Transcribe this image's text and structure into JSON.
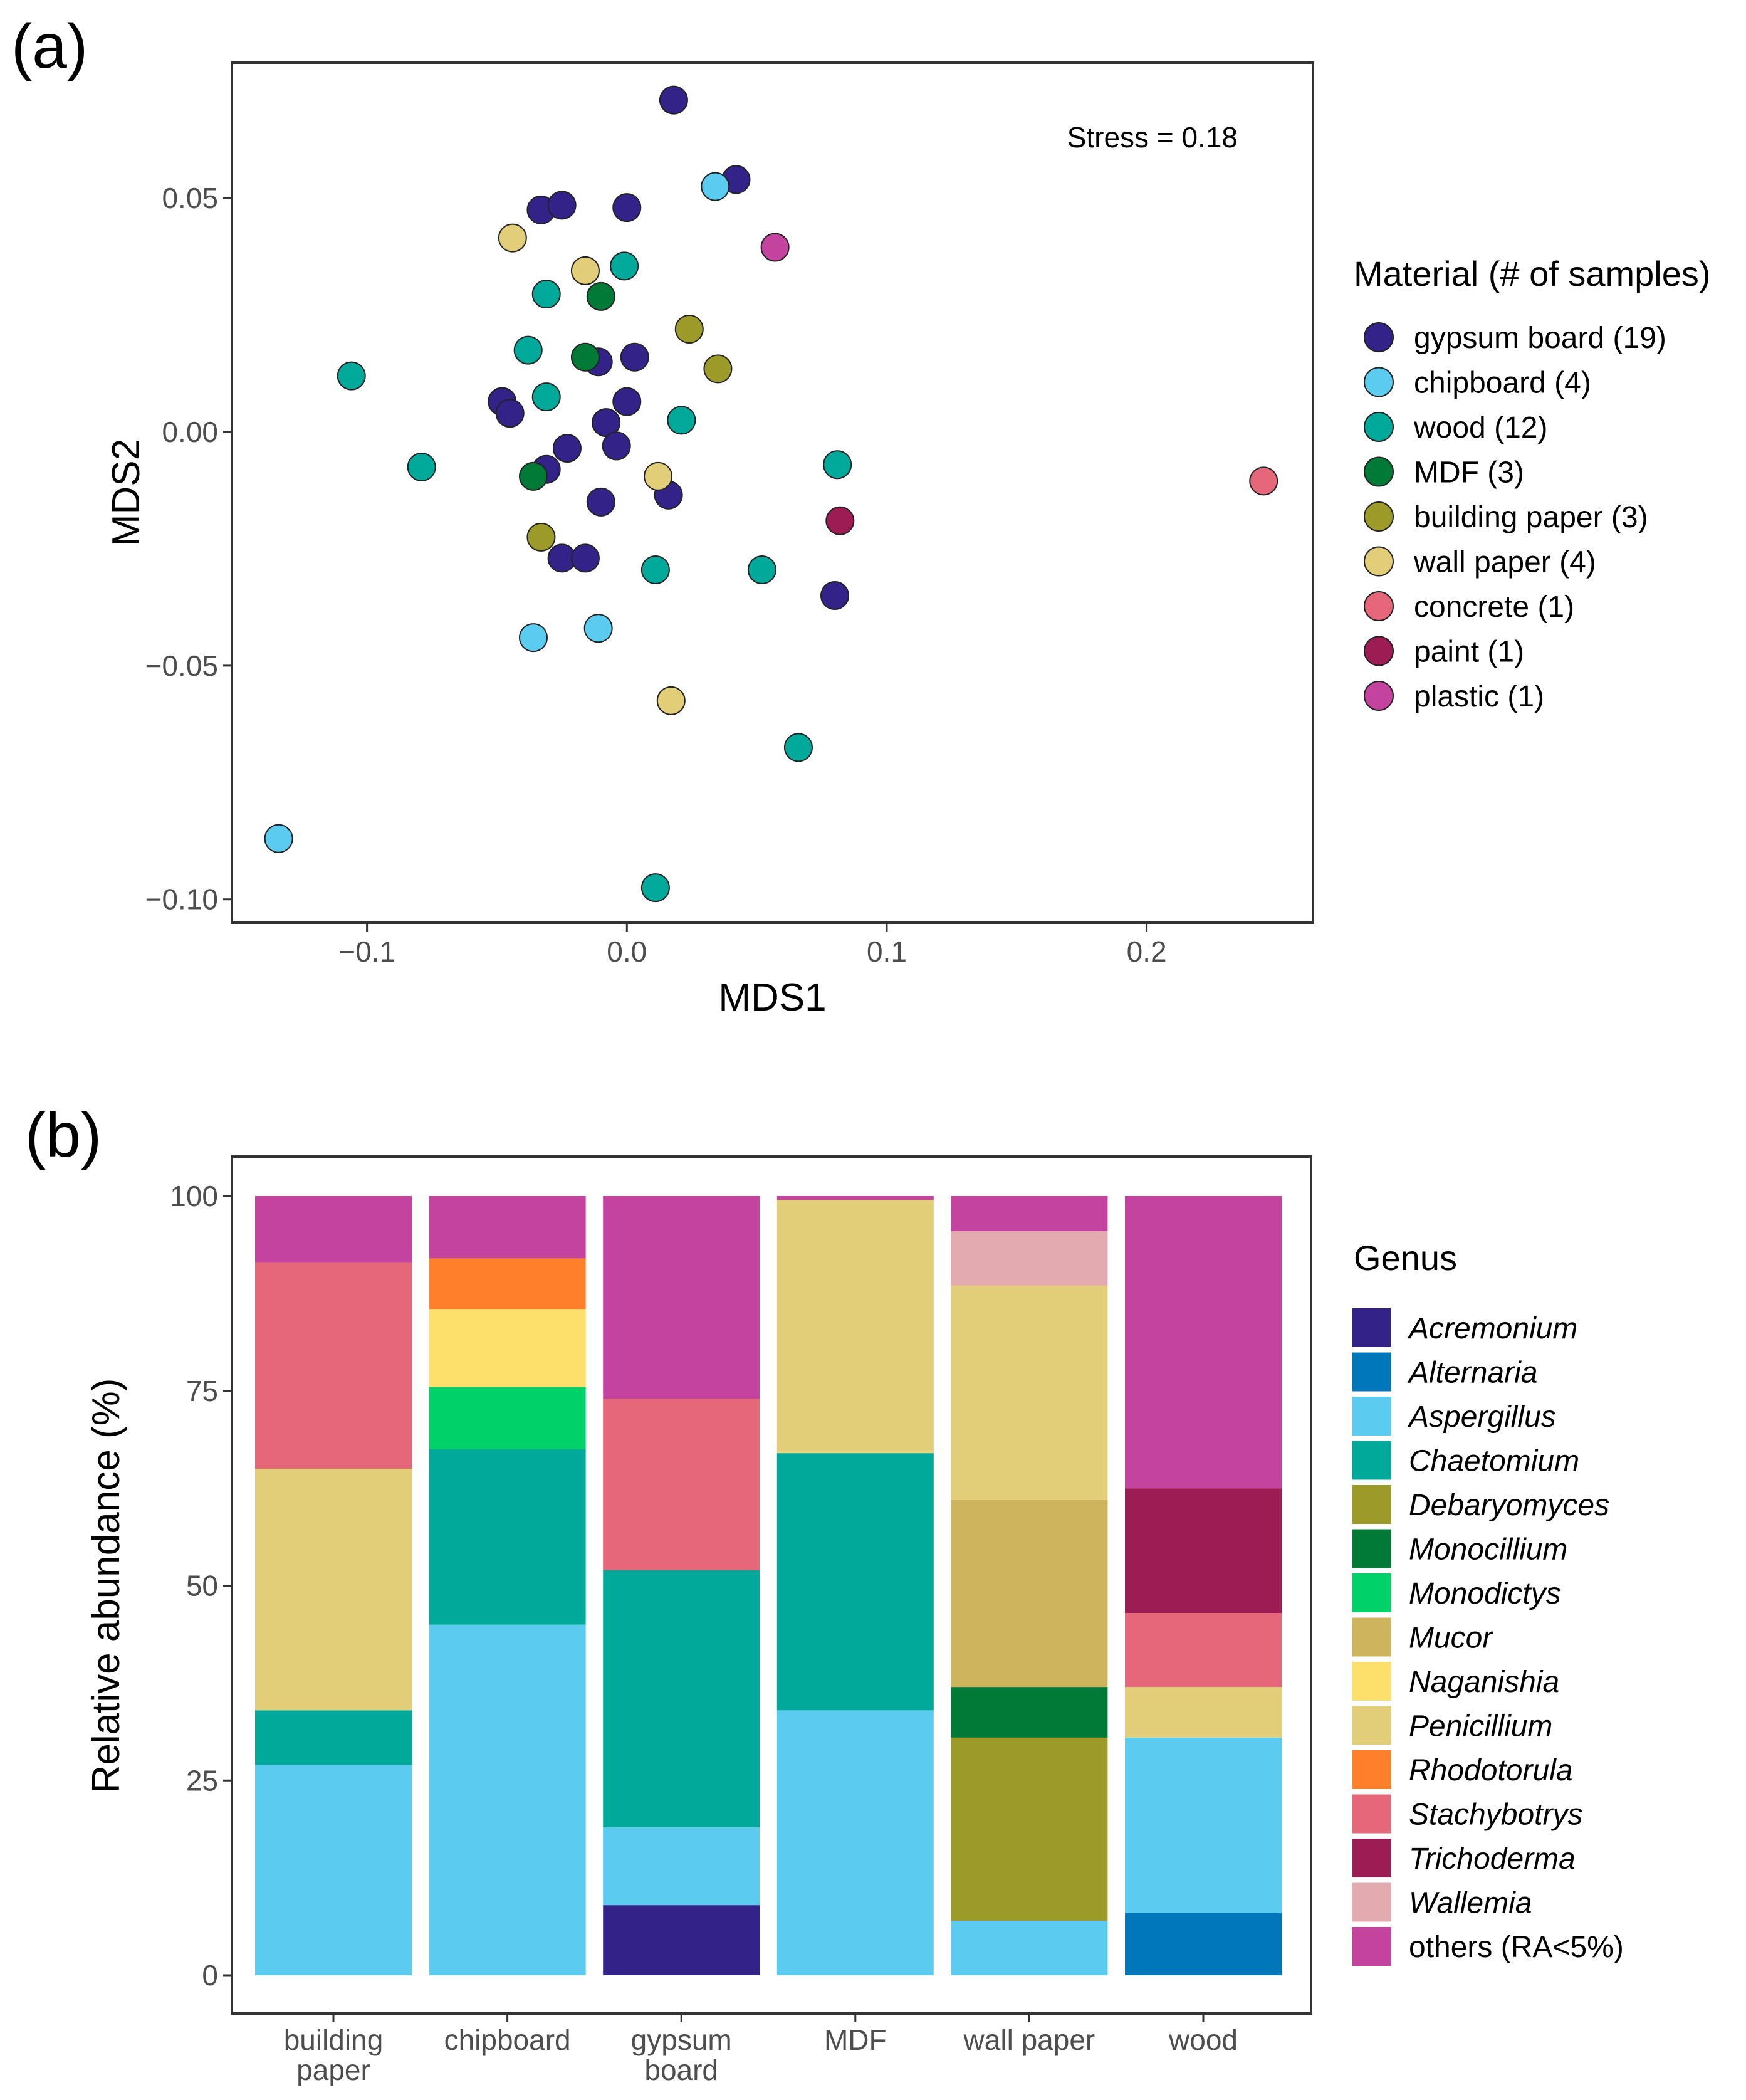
{
  "colors": {
    "gypsum_board": "#332288",
    "chipboard": "#5BCCF0",
    "wood": "#00A99A",
    "MDF": "#007A36",
    "building_paper": "#9C9A28",
    "wall_paper": "#E2CD79",
    "concrete": "#E6677A",
    "paint": "#9E1C54",
    "plastic": "#C3439E",
    "Acremonium": "#332288",
    "Alternaria": "#0077BB",
    "Aspergillus": "#5BCCF0",
    "Chaetomium": "#00A99A",
    "Debaryomyces": "#9C9A28",
    "Monocillium": "#007A36",
    "Monodictys": "#00D26A",
    "Mucor": "#CFB45E",
    "Naganishia": "#FDE06B",
    "Penicillium": "#E2CD79",
    "Rhodotorula": "#FF7F2A",
    "Stachybotrys": "#E6677A",
    "Trichoderma": "#9E1C54",
    "Wallemia": "#E3AAB0",
    "others": "#C3439E"
  },
  "chart_data": [
    {
      "type": "scatter",
      "panel_label": "(a)",
      "xlabel": "MDS1",
      "ylabel": "MDS2",
      "xlim": [
        -0.152,
        0.264
      ],
      "ylim": [
        -0.105,
        0.079
      ],
      "xticks": [
        -0.1,
        0.0,
        0.1,
        0.2
      ],
      "xtick_labels": [
        "−0.1",
        "0.0",
        "0.1",
        "0.2"
      ],
      "yticks": [
        0.05,
        0.0,
        -0.05,
        -0.1
      ],
      "ytick_labels": [
        "0.05",
        "0.00",
        "−0.05",
        "−0.10"
      ],
      "annotation": "Stress = 0.18",
      "legend_title": "Material (# of samples)",
      "legend_position": "right",
      "legend": [
        {
          "key": "gypsum_board",
          "label": "gypsum board (19)"
        },
        {
          "key": "chipboard",
          "label": "chipboard (4)"
        },
        {
          "key": "wood",
          "label": "wood (12)"
        },
        {
          "key": "MDF",
          "label": "MDF (3)"
        },
        {
          "key": "building_paper",
          "label": "building paper (3)"
        },
        {
          "key": "wall_paper",
          "label": "wall paper (4)"
        },
        {
          "key": "concrete",
          "label": "concrete (1)"
        },
        {
          "key": "paint",
          "label": "paint (1)"
        },
        {
          "key": "plastic",
          "label": "plastic (1)"
        }
      ],
      "points": [
        {
          "x": 0.018,
          "y": 0.071,
          "group": "gypsum_board"
        },
        {
          "x": 0.042,
          "y": 0.054,
          "group": "gypsum_board"
        },
        {
          "x": -0.033,
          "y": 0.0475,
          "group": "gypsum_board"
        },
        {
          "x": -0.025,
          "y": 0.0485,
          "group": "gypsum_board"
        },
        {
          "x": 0.0,
          "y": 0.048,
          "group": "gypsum_board"
        },
        {
          "x": -0.011,
          "y": 0.015,
          "group": "gypsum_board"
        },
        {
          "x": 0.003,
          "y": 0.016,
          "group": "gypsum_board"
        },
        {
          "x": -0.048,
          "y": 0.0065,
          "group": "gypsum_board"
        },
        {
          "x": -0.045,
          "y": 0.004,
          "group": "gypsum_board"
        },
        {
          "x": 0.0,
          "y": 0.0065,
          "group": "gypsum_board"
        },
        {
          "x": -0.008,
          "y": 0.002,
          "group": "gypsum_board"
        },
        {
          "x": -0.023,
          "y": -0.0035,
          "group": "gypsum_board"
        },
        {
          "x": -0.004,
          "y": -0.003,
          "group": "gypsum_board"
        },
        {
          "x": -0.031,
          "y": -0.008,
          "group": "gypsum_board"
        },
        {
          "x": -0.01,
          "y": -0.015,
          "group": "gypsum_board"
        },
        {
          "x": 0.016,
          "y": -0.0135,
          "group": "gypsum_board"
        },
        {
          "x": -0.025,
          "y": -0.027,
          "group": "gypsum_board"
        },
        {
          "x": -0.016,
          "y": -0.027,
          "group": "gypsum_board"
        },
        {
          "x": 0.08,
          "y": -0.035,
          "group": "gypsum_board"
        },
        {
          "x": 0.034,
          "y": 0.0525,
          "group": "chipboard"
        },
        {
          "x": -0.036,
          "y": -0.044,
          "group": "chipboard"
        },
        {
          "x": -0.011,
          "y": -0.042,
          "group": "chipboard"
        },
        {
          "x": -0.134,
          "y": -0.087,
          "group": "chipboard"
        },
        {
          "x": -0.001,
          "y": 0.0355,
          "group": "wood"
        },
        {
          "x": -0.031,
          "y": 0.0295,
          "group": "wood"
        },
        {
          "x": -0.106,
          "y": 0.012,
          "group": "wood"
        },
        {
          "x": -0.038,
          "y": 0.0175,
          "group": "wood"
        },
        {
          "x": -0.031,
          "y": 0.0075,
          "group": "wood"
        },
        {
          "x": 0.021,
          "y": 0.0025,
          "group": "wood"
        },
        {
          "x": -0.079,
          "y": -0.0075,
          "group": "wood"
        },
        {
          "x": 0.081,
          "y": -0.007,
          "group": "wood"
        },
        {
          "x": 0.011,
          "y": -0.0295,
          "group": "wood"
        },
        {
          "x": 0.052,
          "y": -0.0295,
          "group": "wood"
        },
        {
          "x": 0.066,
          "y": -0.0675,
          "group": "wood"
        },
        {
          "x": 0.011,
          "y": -0.0975,
          "group": "wood"
        },
        {
          "x": -0.01,
          "y": 0.029,
          "group": "MDF"
        },
        {
          "x": -0.016,
          "y": 0.016,
          "group": "MDF"
        },
        {
          "x": -0.036,
          "y": -0.0095,
          "group": "MDF"
        },
        {
          "x": 0.024,
          "y": 0.022,
          "group": "building_paper"
        },
        {
          "x": 0.035,
          "y": 0.0135,
          "group": "building_paper"
        },
        {
          "x": -0.033,
          "y": -0.0225,
          "group": "building_paper"
        },
        {
          "x": -0.044,
          "y": 0.0415,
          "group": "wall_paper"
        },
        {
          "x": -0.016,
          "y": 0.0345,
          "group": "wall_paper"
        },
        {
          "x": 0.012,
          "y": -0.0095,
          "group": "wall_paper"
        },
        {
          "x": 0.017,
          "y": -0.0575,
          "group": "wall_paper"
        },
        {
          "x": 0.245,
          "y": -0.0105,
          "group": "concrete"
        },
        {
          "x": 0.082,
          "y": -0.019,
          "group": "paint"
        },
        {
          "x": 0.057,
          "y": 0.0395,
          "group": "plastic"
        }
      ]
    },
    {
      "type": "bar",
      "stacked": true,
      "panel_label": "(b)",
      "xlabel": "",
      "ylabel": "Relative abundance (%)",
      "ylim": [
        0,
        100
      ],
      "yticks": [
        0,
        25,
        50,
        75,
        100
      ],
      "ytick_labels": [
        "0",
        "25",
        "50",
        "75",
        "100"
      ],
      "categories": [
        [
          "building",
          "paper"
        ],
        [
          "chipboard"
        ],
        [
          "gypsum",
          "board"
        ],
        [
          "MDF"
        ],
        [
          "wall paper"
        ],
        [
          "wood"
        ]
      ],
      "legend_title": "Genus",
      "legend_position": "right",
      "series": [
        {
          "name": "Acremonium",
          "key": "Acremonium",
          "italic": true,
          "values": [
            0,
            0,
            9,
            0,
            0,
            0
          ]
        },
        {
          "name": "Alternaria",
          "key": "Alternaria",
          "italic": true,
          "values": [
            0,
            0,
            0,
            0,
            0,
            8
          ]
        },
        {
          "name": "Aspergillus",
          "key": "Aspergillus",
          "italic": true,
          "values": [
            27,
            45,
            10,
            34,
            7,
            22.5
          ]
        },
        {
          "name": "Chaetomium",
          "key": "Chaetomium",
          "italic": true,
          "values": [
            7,
            22.5,
            33,
            33,
            0,
            0
          ]
        },
        {
          "name": "Debaryomyces",
          "key": "Debaryomyces",
          "italic": true,
          "values": [
            0,
            0,
            0,
            0,
            23.5,
            0
          ]
        },
        {
          "name": "Monocillium",
          "key": "Monocillium",
          "italic": true,
          "values": [
            0,
            0,
            0,
            0,
            6.5,
            0
          ]
        },
        {
          "name": "Monodictys",
          "key": "Monodictys",
          "italic": true,
          "values": [
            0,
            8,
            0,
            0,
            0,
            0
          ]
        },
        {
          "name": "Mucor",
          "key": "Mucor",
          "italic": true,
          "values": [
            0,
            0,
            0,
            0,
            24,
            0
          ]
        },
        {
          "name": "Naganishia",
          "key": "Naganishia",
          "italic": true,
          "values": [
            0,
            10,
            0,
            0,
            0,
            0
          ]
        },
        {
          "name": "Penicillium",
          "key": "Penicillium",
          "italic": true,
          "values": [
            31,
            0,
            0,
            32.5,
            27.5,
            6.5
          ]
        },
        {
          "name": "Rhodotorula",
          "key": "Rhodotorula",
          "italic": true,
          "values": [
            0,
            6.5,
            0,
            0,
            0,
            0
          ]
        },
        {
          "name": "Stachybotrys",
          "key": "Stachybotrys",
          "italic": true,
          "values": [
            26.5,
            0,
            22,
            0,
            0,
            9.5
          ]
        },
        {
          "name": "Trichoderma",
          "key": "Trichoderma",
          "italic": true,
          "values": [
            0,
            0,
            0,
            0,
            0,
            16
          ]
        },
        {
          "name": "Wallemia",
          "key": "Wallemia",
          "italic": true,
          "values": [
            0,
            0,
            0,
            0,
            7,
            0
          ]
        },
        {
          "name": "others (RA<5%)",
          "key": "others",
          "italic": false,
          "values": [
            8.5,
            8,
            26,
            0.5,
            4.5,
            37.5
          ]
        }
      ]
    }
  ]
}
